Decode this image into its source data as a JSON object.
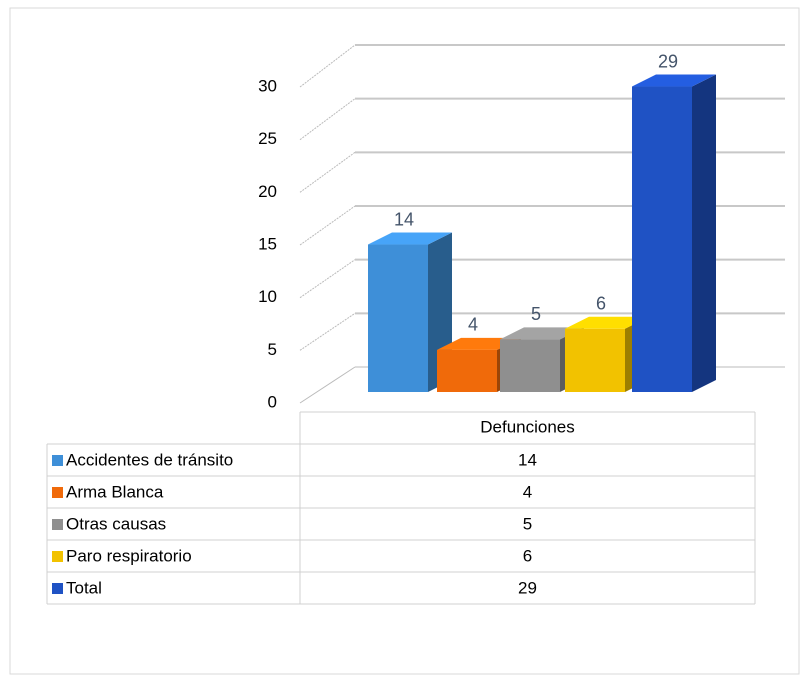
{
  "chart_data": {
    "type": "bar3d",
    "categories": [
      "Defunciones"
    ],
    "series": [
      {
        "name": "Accidentes de tránsito",
        "color": "#3e8fd8",
        "values": [
          14
        ]
      },
      {
        "name": "Arma Blanca",
        "color": "#f06a0a",
        "values": [
          4
        ]
      },
      {
        "name": "Otras causas",
        "color": "#8f8f8f",
        "values": [
          5
        ]
      },
      {
        "name": "Paro respiratorio",
        "color": "#f2c200",
        "values": [
          6
        ]
      },
      {
        "name": "Total",
        "color": "#1f52c4",
        "values": [
          29
        ]
      }
    ],
    "ylim": [
      0,
      30
    ],
    "yticks": [
      0,
      5,
      10,
      15,
      20,
      25,
      30
    ],
    "grid": true,
    "data_table": true
  }
}
